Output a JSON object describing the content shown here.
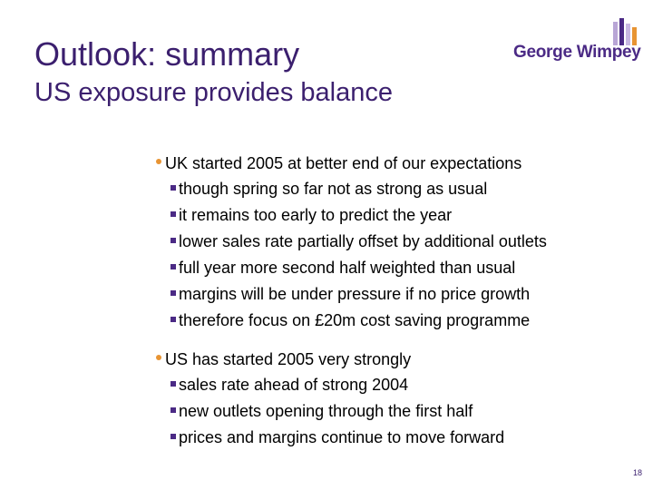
{
  "slide": {
    "title": "Outlook: summary",
    "subtitle": "US exposure provides balance",
    "logo_text": "George Wimpey",
    "page_number": "18",
    "colors": {
      "title": "#3b1f6e",
      "brand_purple": "#4b2a85",
      "bullet_orange": "#e89433"
    },
    "sections": [
      {
        "heading": "UK started 2005 at better end of our expectations",
        "items": [
          "though spring so far not as strong as usual",
          "it remains too early to predict the year",
          "lower sales rate partially offset by additional outlets",
          "full year more second half weighted than usual",
          "margins will be under pressure if no price growth",
          "therefore focus on £20m cost saving programme"
        ]
      },
      {
        "heading": "US has started 2005 very strongly",
        "items": [
          "sales rate ahead of strong 2004",
          "new outlets opening through the first half",
          "prices and margins continue to move forward"
        ]
      }
    ]
  }
}
